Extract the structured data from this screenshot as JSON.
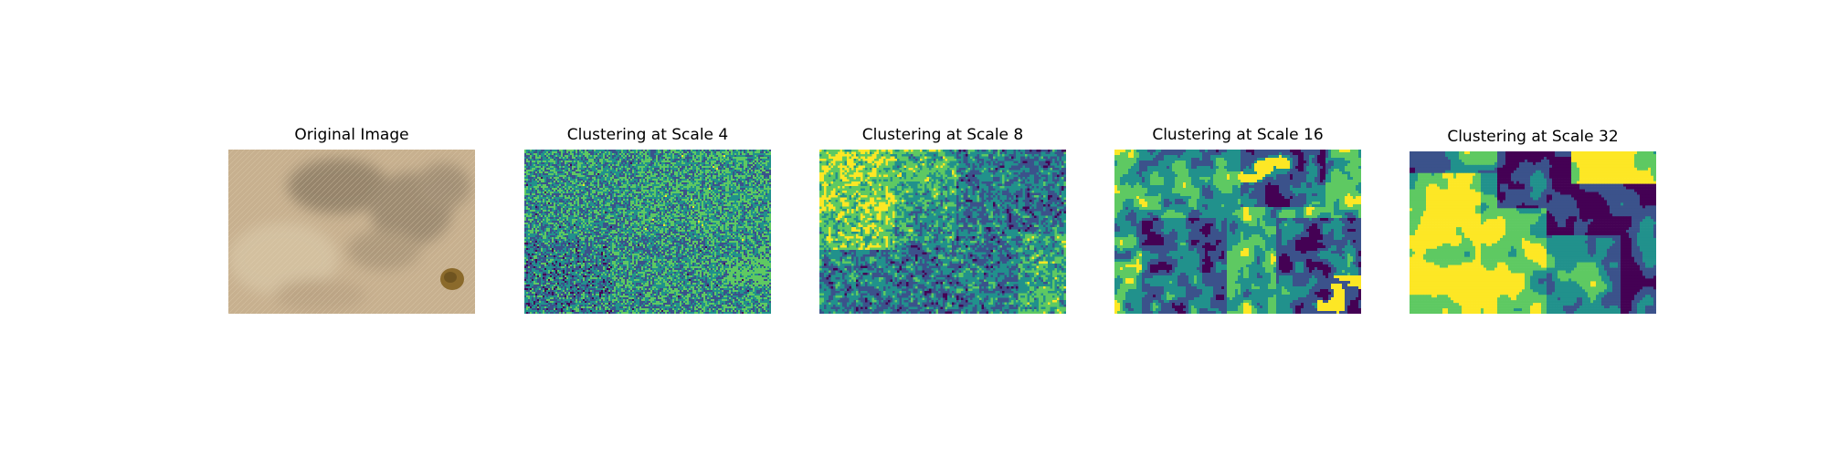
{
  "figure": {
    "panels": [
      {
        "title": "Original Image",
        "kind": "photo"
      },
      {
        "title": "Clustering at Scale 4",
        "kind": "cluster",
        "scale": 4
      },
      {
        "title": "Clustering at Scale 8",
        "kind": "cluster",
        "scale": 8
      },
      {
        "title": "Clustering at Scale 16",
        "kind": "cluster",
        "scale": 16
      },
      {
        "title": "Clustering at Scale 32",
        "kind": "cluster",
        "scale": 32
      }
    ],
    "palette": [
      "#440154",
      "#3b528b",
      "#21918c",
      "#5ec962",
      "#fde725"
    ],
    "photo_colors": {
      "ground": "#c7b08f",
      "dark_patch": "#8a7a63",
      "shrub": "#8b6a2b"
    }
  }
}
